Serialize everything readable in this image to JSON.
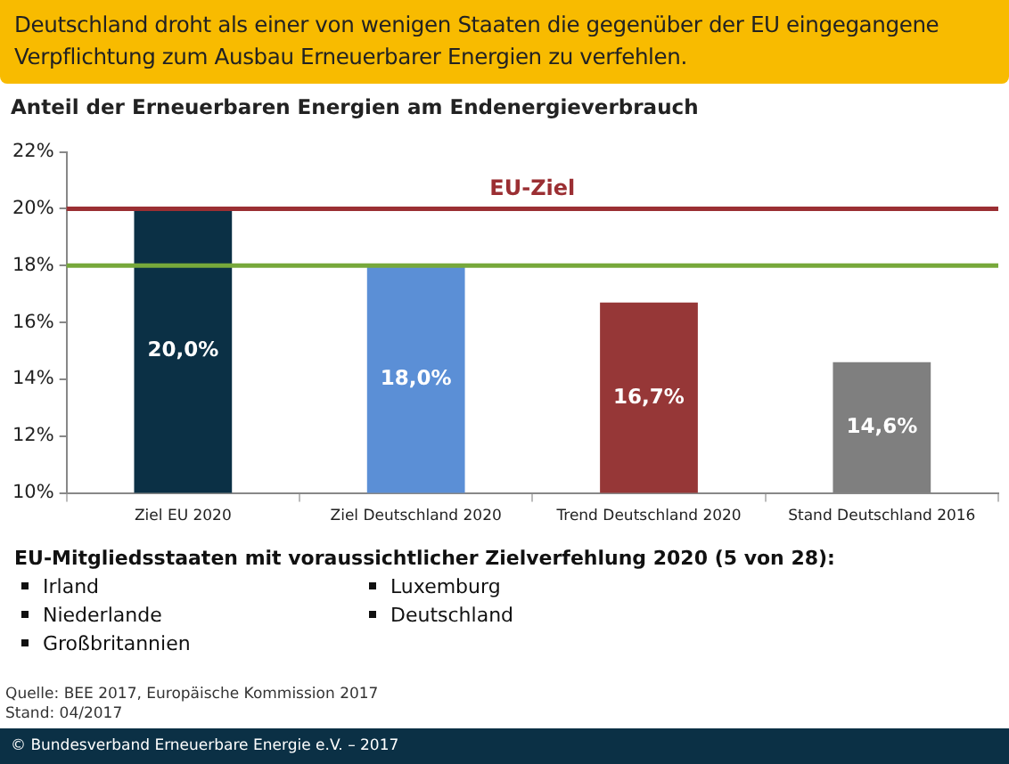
{
  "chart_data": {
    "type": "bar",
    "title": "Deutschland droht als einer von wenigen Staaten die gegenüber der EU eingegangene Verpflichtung zum Ausbau Erneuerbarer Energien zu verfehlen.",
    "subtitle": "Anteil der Erneuerbaren Energien am Endenergieverbrauch",
    "categories": [
      "Ziel EU 2020",
      "Ziel Deutschland 2020",
      "Trend Deutschland 2020",
      "Stand Deutschland 2016"
    ],
    "values": [
      20.0,
      18.0,
      16.7,
      14.6
    ],
    "colors": [
      "#0b3045",
      "#5b8fd6",
      "#963737",
      "#7f7f7f"
    ],
    "value_labels": [
      "20,0%",
      "18,0%",
      "16,7%",
      "14,6%"
    ],
    "ylim": [
      10,
      22
    ],
    "yticks": [
      {
        "value": 10,
        "label": "10%"
      },
      {
        "value": 12,
        "label": "12%"
      },
      {
        "value": 14,
        "label": "14%"
      },
      {
        "value": 16,
        "label": "16%"
      },
      {
        "value": 18,
        "label": "18%"
      },
      {
        "value": 20,
        "label": "20%"
      },
      {
        "value": 22,
        "label": "22%"
      }
    ],
    "ref_lines": [
      {
        "axis": "y",
        "value": 20,
        "label": "EU-Ziel",
        "color": "#9b2f33"
      },
      {
        "axis": "y",
        "value": 18,
        "label": null,
        "color": "#77a83b"
      }
    ],
    "grid": false,
    "legend": false,
    "annotations": [
      "EU-Mitgliedsstaaten mit voraussichtlicher Zielverfehlung 2020 (5 von 28):",
      "Irland",
      "Niederlande",
      "Großbritannien",
      "Luxemburg",
      "Deutschland",
      "Quelle: BEE 2017,  Europäische Kommission 2017",
      "Stand: 04/2017",
      "© Bundesverband Erneuerbare Energie e.V. – 2017"
    ]
  }
}
